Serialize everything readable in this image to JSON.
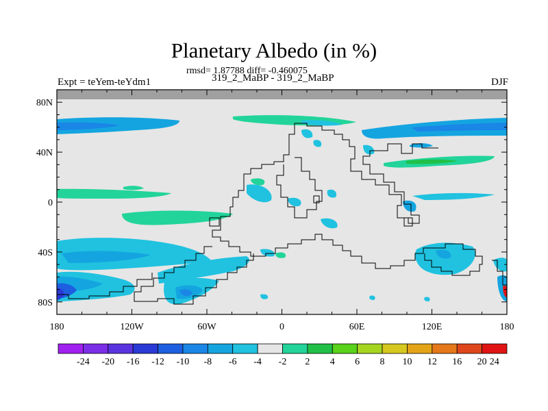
{
  "chart_data": {
    "type": "heatmap",
    "title": "Planetary Albedo (in %)",
    "stats_text": "rmsd= 1.87788 diff= -0.460075",
    "left_label": "Expt = teYem-teYdm1",
    "center_label": "319_2_MaBP - 319_2_MaBP",
    "right_label": "DJF",
    "x_ticks": [
      "180",
      "120W",
      "60W",
      "0",
      "60E",
      "120E",
      "180"
    ],
    "x_tick_values": [
      -180,
      -120,
      -60,
      0,
      60,
      120,
      180
    ],
    "y_ticks": [
      "80N",
      "40N",
      "0",
      "40S",
      "80S"
    ],
    "y_tick_values": [
      80,
      40,
      0,
      -40,
      -80
    ],
    "xlim": [
      -180,
      180
    ],
    "ylim": [
      -90,
      90
    ],
    "colorbar": {
      "labels": [
        "-24",
        "-20",
        "-16",
        "-12",
        "-10",
        "-8",
        "-6",
        "-4",
        "-2",
        "2",
        "4",
        "6",
        "8",
        "10",
        "12",
        "16",
        "20",
        "24"
      ],
      "colors": [
        "#a020f0",
        "#7b2ee8",
        "#5a33e0",
        "#2a3ad6",
        "#1d5fe0",
        "#1a86e6",
        "#14a5e0",
        "#20c2e0",
        "#e6e6e6",
        "#22d49a",
        "#20c048",
        "#58d21a",
        "#a6d520",
        "#d6c81e",
        "#e4a418",
        "#e4781a",
        "#e0461c",
        "#e01414"
      ]
    },
    "background_color": "#e6e6e6",
    "missing_band_color": "#a0a0a0"
  }
}
